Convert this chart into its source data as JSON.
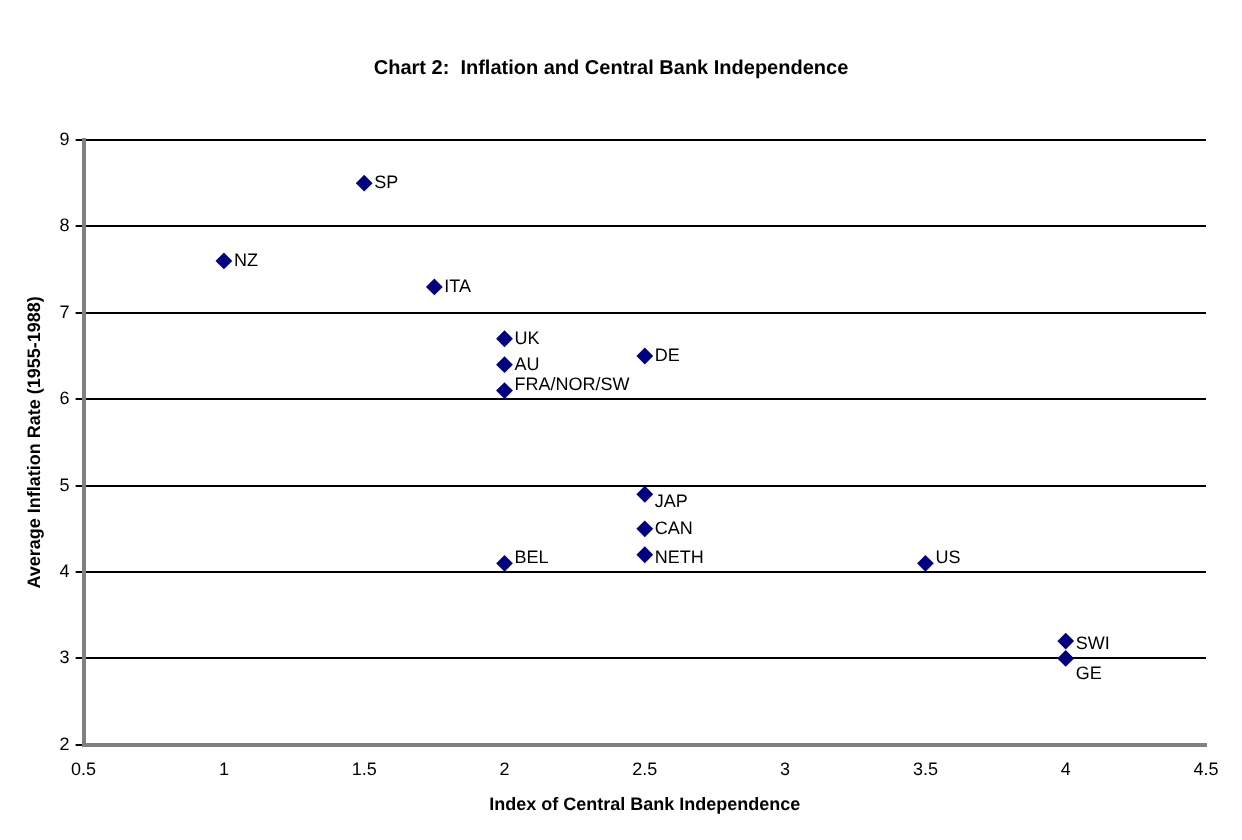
{
  "chart_data": {
    "type": "scatter",
    "title": "Chart 2:  Inflation and Central Bank Independence",
    "xlabel": "Index of Central Bank Independence",
    "ylabel": "Average Inflation Rate (1955-1988)",
    "x": [
      1.5,
      1,
      1.75,
      2,
      2,
      2.5,
      2,
      2.5,
      2.5,
      2.5,
      2,
      3.5,
      4,
      4
    ],
    "series": [
      {
        "color": "#000080",
        "values": [
          8.5,
          7.6,
          7.3,
          6.7,
          6.4,
          6.5,
          6.1,
          4.9,
          4.5,
          4.2,
          4.1,
          4.1,
          3.2,
          3.0
        ]
      }
    ],
    "annotations": [
      {
        "text": "SP",
        "x": 1.5,
        "y": 8.5
      },
      {
        "text": "NZ",
        "x": 1,
        "y": 7.6
      },
      {
        "text": "ITA",
        "x": 1.75,
        "y": 7.3
      },
      {
        "text": "UK",
        "x": 2,
        "y": 6.7
      },
      {
        "text": "AU",
        "x": 2,
        "y": 6.4
      },
      {
        "text": "DE",
        "x": 2.5,
        "y": 6.5
      },
      {
        "text": "FRA/NOR/SW",
        "x": 2,
        "y": 6.1
      },
      {
        "text": "JAP",
        "x": 2.5,
        "y": 4.9
      },
      {
        "text": "CAN",
        "x": 2.5,
        "y": 4.5
      },
      {
        "text": "NETH",
        "x": 2.5,
        "y": 4.2
      },
      {
        "text": "BEL",
        "x": 2,
        "y": 4.1
      },
      {
        "text": "US",
        "x": 3.5,
        "y": 4.1
      },
      {
        "text": "SWI",
        "x": 4,
        "y": 3.2
      },
      {
        "text": "GE",
        "x": 4,
        "y": 3.0
      }
    ],
    "xlim": [
      0.5,
      4.5
    ],
    "xticks": [
      0.5,
      1,
      1.5,
      2,
      2.5,
      3,
      3.5,
      4,
      4.5
    ],
    "ylim": [
      2,
      9
    ],
    "yticks": [
      2,
      3,
      4,
      5,
      6,
      7,
      8,
      9
    ],
    "grid": "y",
    "legend": false,
    "marker": "diamond"
  }
}
